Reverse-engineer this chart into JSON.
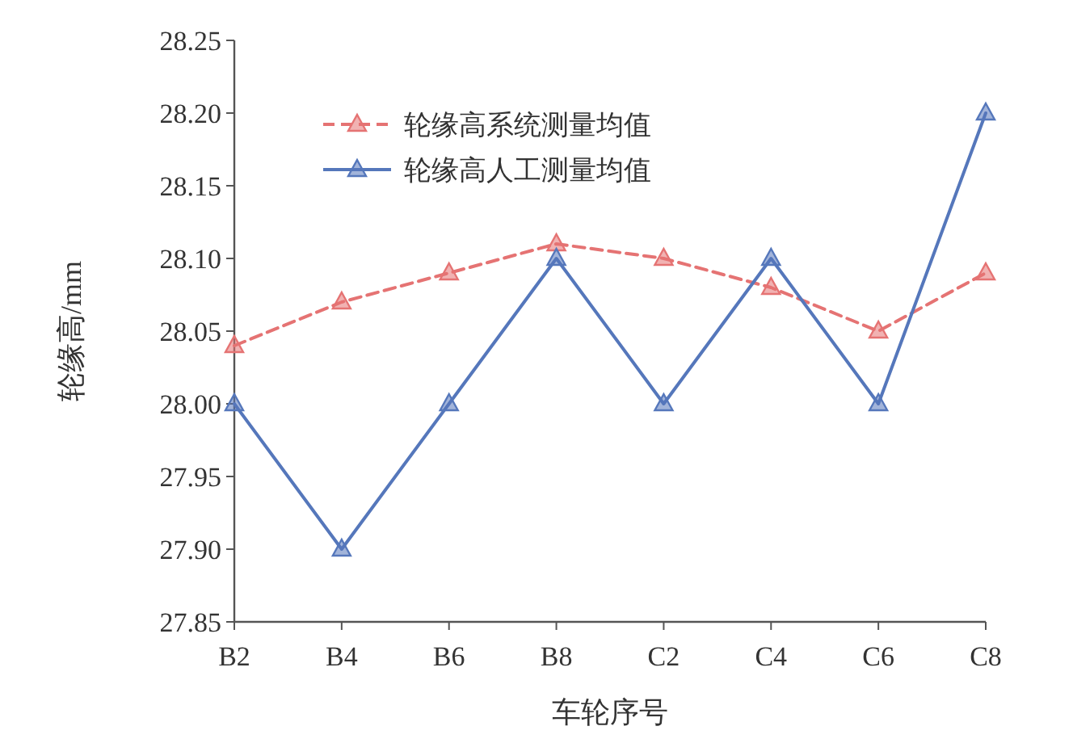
{
  "chart_data": {
    "type": "line",
    "xlabel": "车轮序号",
    "ylabel": "轮缘高/mm",
    "categories": [
      "B2",
      "B4",
      "B6",
      "B8",
      "C2",
      "C4",
      "C6",
      "C8"
    ],
    "series": [
      {
        "name": "轮缘高系统测量均值",
        "color": "#e57373",
        "line_style": "dashed",
        "values": [
          28.04,
          28.07,
          28.09,
          28.11,
          28.1,
          28.08,
          28.05,
          28.09
        ]
      },
      {
        "name": "轮缘高人工测量均值",
        "color": "#5577bb",
        "line_style": "solid",
        "values": [
          28.0,
          27.9,
          28.0,
          28.1,
          28.0,
          28.1,
          28.0,
          28.2
        ]
      }
    ],
    "ylim": [
      27.85,
      28.25
    ],
    "yticks": [
      {
        "value": 27.85,
        "label": "27.85"
      },
      {
        "value": 27.9,
        "label": "27.90"
      },
      {
        "value": 27.95,
        "label": "27.95"
      },
      {
        "value": 28.0,
        "label": "28.00"
      },
      {
        "value": 28.05,
        "label": "28.05"
      },
      {
        "value": 28.1,
        "label": "28.10"
      },
      {
        "value": 28.15,
        "label": "28.15"
      },
      {
        "value": 28.2,
        "label": "28.20"
      },
      {
        "value": 28.25,
        "label": "28.25"
      }
    ],
    "marker": "triangle",
    "legend": "top",
    "grid": false
  }
}
